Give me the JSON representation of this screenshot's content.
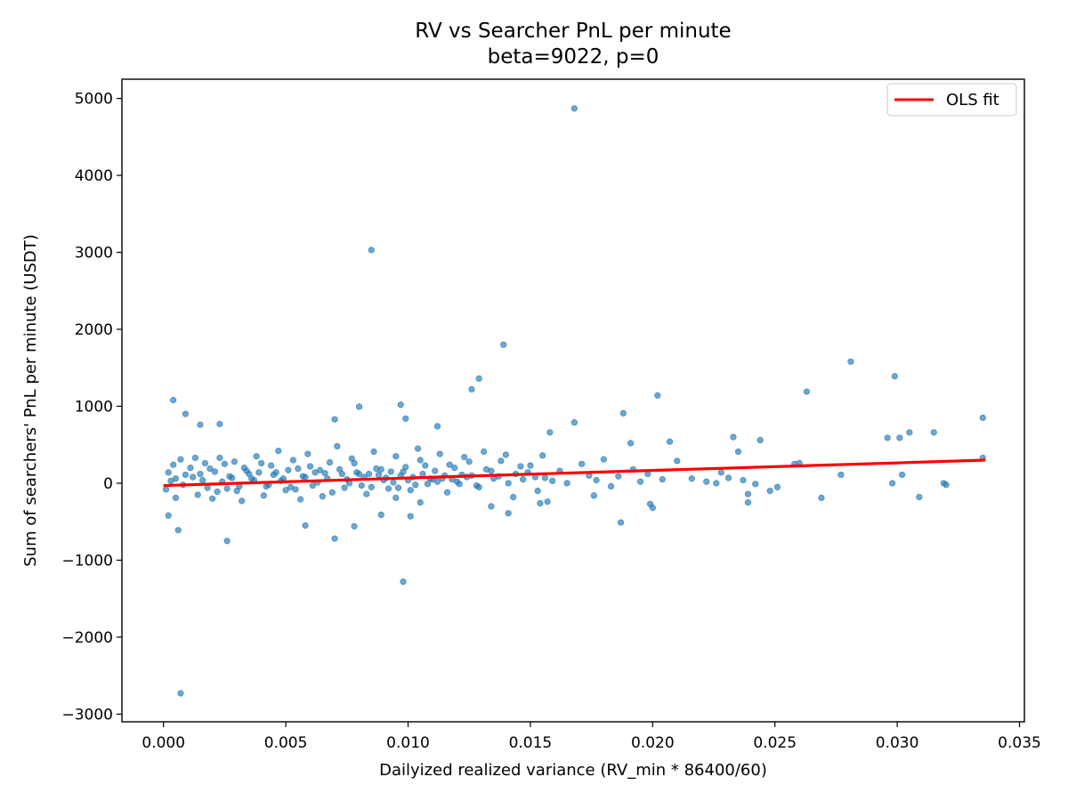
{
  "chart_data": {
    "type": "scatter",
    "title": "RV vs Searcher PnL per minute",
    "subtitle": "beta=9022, p=0",
    "xlabel": "Dailyized realized variance (RV_min * 86400/60)",
    "ylabel": "Sum of searchers' PnL per minute (USDT)",
    "xlim": [
      -0.0017,
      0.0352
    ],
    "ylim": [
      -3100,
      5250
    ],
    "x_ticks": [
      0.0,
      0.005,
      0.01,
      0.015,
      0.02,
      0.025,
      0.03,
      0.035
    ],
    "x_tick_labels": [
      "0.000",
      "0.005",
      "0.010",
      "0.015",
      "0.020",
      "0.025",
      "0.030",
      "0.035"
    ],
    "y_ticks": [
      -3000,
      -2000,
      -1000,
      0,
      1000,
      2000,
      3000,
      4000,
      5000
    ],
    "y_tick_labels": [
      "−3000",
      "−2000",
      "−1000",
      "0",
      "1000",
      "2000",
      "3000",
      "4000",
      "5000"
    ],
    "grid": false,
    "legend": {
      "placement": "top-right",
      "entries": [
        "OLS fit"
      ]
    },
    "colors": {
      "points": "#1f77b4",
      "fit": "#ff0000",
      "frame": "#000000"
    },
    "series": [
      {
        "type": "scatter",
        "points": [
          [
            0.0168,
            4870
          ],
          [
            0.0085,
            3030
          ],
          [
            0.0139,
            1800
          ],
          [
            0.0281,
            1580
          ],
          [
            0.0299,
            1390
          ],
          [
            0.0129,
            1360
          ],
          [
            0.0126,
            1220
          ],
          [
            0.0263,
            1190
          ],
          [
            0.0202,
            1140
          ],
          [
            0.0004,
            1080
          ],
          [
            0.0097,
            1020
          ],
          [
            0.008,
            995
          ],
          [
            0.0188,
            910
          ],
          [
            0.0009,
            900
          ],
          [
            0.0335,
            850
          ],
          [
            0.0099,
            840
          ],
          [
            0.007,
            830
          ],
          [
            0.0168,
            790
          ],
          [
            0.0023,
            770
          ],
          [
            0.0015,
            760
          ],
          [
            0.0112,
            740
          ],
          [
            0.0305,
            660
          ],
          [
            0.0315,
            660
          ],
          [
            0.0158,
            660
          ],
          [
            0.0233,
            600
          ],
          [
            0.0296,
            590
          ],
          [
            0.0301,
            590
          ],
          [
            0.0207,
            540
          ],
          [
            0.0244,
            560
          ],
          [
            0.0191,
            520
          ],
          [
            0.0235,
            410
          ],
          [
            0.0335,
            330
          ],
          [
            0.026,
            260
          ],
          [
            0.0258,
            250
          ],
          [
            0.0277,
            110
          ],
          [
            0.0302,
            110
          ],
          [
            0.0298,
            0
          ],
          [
            0.0319,
            0
          ],
          [
            0.032,
            -20
          ],
          [
            0.0309,
            -180
          ],
          [
            0.0269,
            -190
          ],
          [
            0.0248,
            -100
          ],
          [
            0.0251,
            -50
          ],
          [
            0.0239,
            -140
          ],
          [
            0.0239,
            -250
          ],
          [
            0.0199,
            -270
          ],
          [
            0.02,
            -320
          ],
          [
            0.0187,
            -510
          ],
          [
            0.0176,
            -160
          ],
          [
            0.0226,
            0
          ],
          [
            0.0228,
            140
          ],
          [
            0.0098,
            -1280
          ],
          [
            0.0007,
            -2730
          ],
          [
            0.0026,
            -750
          ],
          [
            0.0006,
            -610
          ],
          [
            0.007,
            -720
          ],
          [
            0.0078,
            -560
          ],
          [
            0.0058,
            -550
          ],
          [
            0.0089,
            -410
          ],
          [
            0.0101,
            -430
          ],
          [
            0.0002,
            -420
          ],
          [
            0.0141,
            -390
          ],
          [
            0.0134,
            -300
          ],
          [
            0.0154,
            -260
          ],
          [
            0.0157,
            -240
          ],
          [
            0.0105,
            -250
          ],
          [
            0.0095,
            -190
          ],
          [
            0.0001,
            -80
          ],
          [
            0.0003,
            30
          ],
          [
            0.0005,
            60
          ],
          [
            0.0008,
            -20
          ],
          [
            0.0012,
            80
          ],
          [
            0.0015,
            120
          ],
          [
            0.0018,
            -60
          ],
          [
            0.0021,
            150
          ],
          [
            0.0024,
            20
          ],
          [
            0.0027,
            90
          ],
          [
            0.003,
            -100
          ],
          [
            0.0033,
            200
          ],
          [
            0.0036,
            60
          ],
          [
            0.0039,
            140
          ],
          [
            0.0042,
            -40
          ],
          [
            0.0045,
            110
          ],
          [
            0.0048,
            30
          ],
          [
            0.0051,
            170
          ],
          [
            0.0054,
            -80
          ],
          [
            0.0057,
            90
          ],
          [
            0.006,
            220
          ],
          [
            0.0063,
            10
          ],
          [
            0.0066,
            130
          ],
          [
            0.0069,
            -120
          ],
          [
            0.0072,
            180
          ],
          [
            0.0075,
            50
          ],
          [
            0.0078,
            260
          ],
          [
            0.0081,
            -30
          ],
          [
            0.0084,
            120
          ],
          [
            0.0087,
            190
          ],
          [
            0.009,
            40
          ],
          [
            0.0093,
            150
          ],
          [
            0.0096,
            -60
          ],
          [
            0.0099,
            210
          ],
          [
            0.0102,
            80
          ],
          [
            0.0105,
            300
          ],
          [
            0.0108,
            -10
          ],
          [
            0.0111,
            160
          ],
          [
            0.0114,
            60
          ],
          [
            0.0117,
            240
          ],
          [
            0.012,
            20
          ],
          [
            0.0123,
            340
          ],
          [
            0.0126,
            100
          ],
          [
            0.0129,
            -50
          ],
          [
            0.0132,
            180
          ],
          [
            0.0135,
            60
          ],
          [
            0.0138,
            290
          ],
          [
            0.0141,
            0
          ],
          [
            0.0144,
            120
          ],
          [
            0.0147,
            50
          ],
          [
            0.015,
            230
          ],
          [
            0.0153,
            -100
          ],
          [
            0.0156,
            70
          ],
          [
            0.0159,
            30
          ],
          [
            0.0162,
            160
          ],
          [
            0.0165,
            0
          ],
          [
            0.0171,
            250
          ],
          [
            0.0174,
            100
          ],
          [
            0.0177,
            40
          ],
          [
            0.018,
            310
          ],
          [
            0.0183,
            -40
          ],
          [
            0.0186,
            90
          ],
          [
            0.0192,
            180
          ],
          [
            0.0195,
            20
          ],
          [
            0.0198,
            120
          ],
          [
            0.0204,
            50
          ],
          [
            0.021,
            290
          ],
          [
            0.0216,
            60
          ],
          [
            0.0222,
            20
          ],
          [
            0.0231,
            70
          ],
          [
            0.0237,
            40
          ],
          [
            0.0242,
            -10
          ],
          [
            0.0004,
            240
          ],
          [
            0.0007,
            310
          ],
          [
            0.0011,
            200
          ],
          [
            0.0014,
            -150
          ],
          [
            0.0017,
            260
          ],
          [
            0.002,
            -200
          ],
          [
            0.0023,
            330
          ],
          [
            0.0026,
            -70
          ],
          [
            0.0029,
            280
          ],
          [
            0.0032,
            -230
          ],
          [
            0.0035,
            120
          ],
          [
            0.0038,
            350
          ],
          [
            0.0041,
            -160
          ],
          [
            0.0044,
            230
          ],
          [
            0.0047,
            420
          ],
          [
            0.005,
            -90
          ],
          [
            0.0053,
            300
          ],
          [
            0.0056,
            -210
          ],
          [
            0.0059,
            380
          ],
          [
            0.0062,
            140
          ],
          [
            0.0065,
            -170
          ],
          [
            0.0068,
            270
          ],
          [
            0.0071,
            480
          ],
          [
            0.0074,
            -60
          ],
          [
            0.0077,
            320
          ],
          [
            0.008,
            120
          ],
          [
            0.0083,
            -140
          ],
          [
            0.0086,
            410
          ],
          [
            0.0089,
            180
          ],
          [
            0.0092,
            -70
          ],
          [
            0.0095,
            350
          ],
          [
            0.0098,
            150
          ],
          [
            0.0101,
            -90
          ],
          [
            0.0104,
            450
          ],
          [
            0.0107,
            230
          ],
          [
            0.011,
            50
          ],
          [
            0.0113,
            380
          ],
          [
            0.0116,
            -120
          ],
          [
            0.0119,
            200
          ],
          [
            0.0122,
            110
          ],
          [
            0.0125,
            280
          ],
          [
            0.0128,
            -30
          ],
          [
            0.0131,
            410
          ],
          [
            0.0134,
            160
          ],
          [
            0.0137,
            90
          ],
          [
            0.014,
            370
          ],
          [
            0.0143,
            -180
          ],
          [
            0.0146,
            220
          ],
          [
            0.0149,
            140
          ],
          [
            0.0152,
            80
          ],
          [
            0.0155,
            360
          ],
          [
            0.0002,
            140
          ],
          [
            0.0005,
            -190
          ],
          [
            0.0009,
            110
          ],
          [
            0.0013,
            330
          ],
          [
            0.0016,
            40
          ],
          [
            0.0019,
            190
          ],
          [
            0.0022,
            -110
          ],
          [
            0.0025,
            250
          ],
          [
            0.0028,
            70
          ],
          [
            0.0031,
            -40
          ],
          [
            0.0034,
            160
          ],
          [
            0.0037,
            40
          ],
          [
            0.004,
            260
          ],
          [
            0.0043,
            -20
          ],
          [
            0.0046,
            140
          ],
          [
            0.0049,
            60
          ],
          [
            0.0052,
            -50
          ],
          [
            0.0055,
            190
          ],
          [
            0.0058,
            80
          ],
          [
            0.0061,
            -30
          ],
          [
            0.0064,
            170
          ],
          [
            0.0067,
            60
          ],
          [
            0.0073,
            120
          ],
          [
            0.0076,
            0
          ],
          [
            0.0079,
            140
          ],
          [
            0.0082,
            80
          ],
          [
            0.0085,
            -50
          ],
          [
            0.0088,
            110
          ],
          [
            0.0091,
            70
          ],
          [
            0.0094,
            10
          ],
          [
            0.0097,
            100
          ],
          [
            0.01,
            40
          ],
          [
            0.0103,
            -20
          ],
          [
            0.0106,
            120
          ],
          [
            0.0109,
            60
          ],
          [
            0.0112,
            20
          ],
          [
            0.0115,
            100
          ],
          [
            0.0118,
            50
          ],
          [
            0.0121,
            -10
          ],
          [
            0.0124,
            80
          ]
        ]
      },
      {
        "name": "OLS fit",
        "type": "line",
        "points": [
          [
            0.0,
            -30
          ],
          [
            0.0336,
            300
          ]
        ]
      }
    ]
  }
}
